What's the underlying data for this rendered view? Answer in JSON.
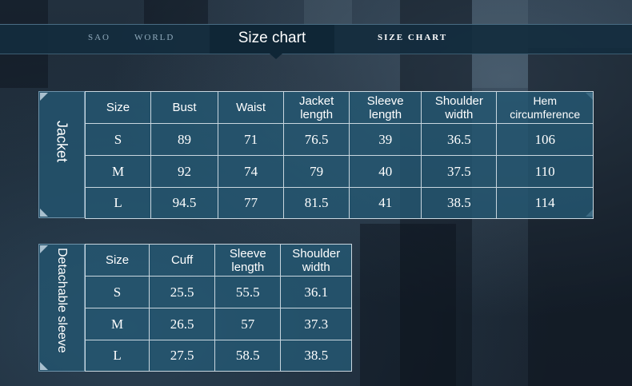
{
  "header": {
    "left_items": [
      "SAO",
      "WORLD"
    ],
    "center_title": "Size chart",
    "right_title": "SIZE CHART"
  },
  "jacket": {
    "side_label": "Jacket",
    "columns": [
      "Size",
      "Bust",
      "Waist",
      "Jacket length",
      "Sleeve length",
      "Shoulder width",
      "Hem circumference"
    ],
    "rows": [
      [
        "S",
        "89",
        "71",
        "76.5",
        "39",
        "36.5",
        "106"
      ],
      [
        "M",
        "92",
        "74",
        "79",
        "40",
        "37.5",
        "110"
      ],
      [
        "L",
        "94.5",
        "77",
        "81.5",
        "41",
        "38.5",
        "114"
      ]
    ]
  },
  "sleeve": {
    "side_label": "Detachable sleeve",
    "columns": [
      "Size",
      "Cuff",
      "Sleeve length",
      "Shoulder width"
    ],
    "rows": [
      [
        "S",
        "25.5",
        "55.5",
        "36.1"
      ],
      [
        "M",
        "26.5",
        "57",
        "37.3"
      ],
      [
        "L",
        "27.5",
        "58.5",
        "38.5"
      ]
    ]
  }
}
